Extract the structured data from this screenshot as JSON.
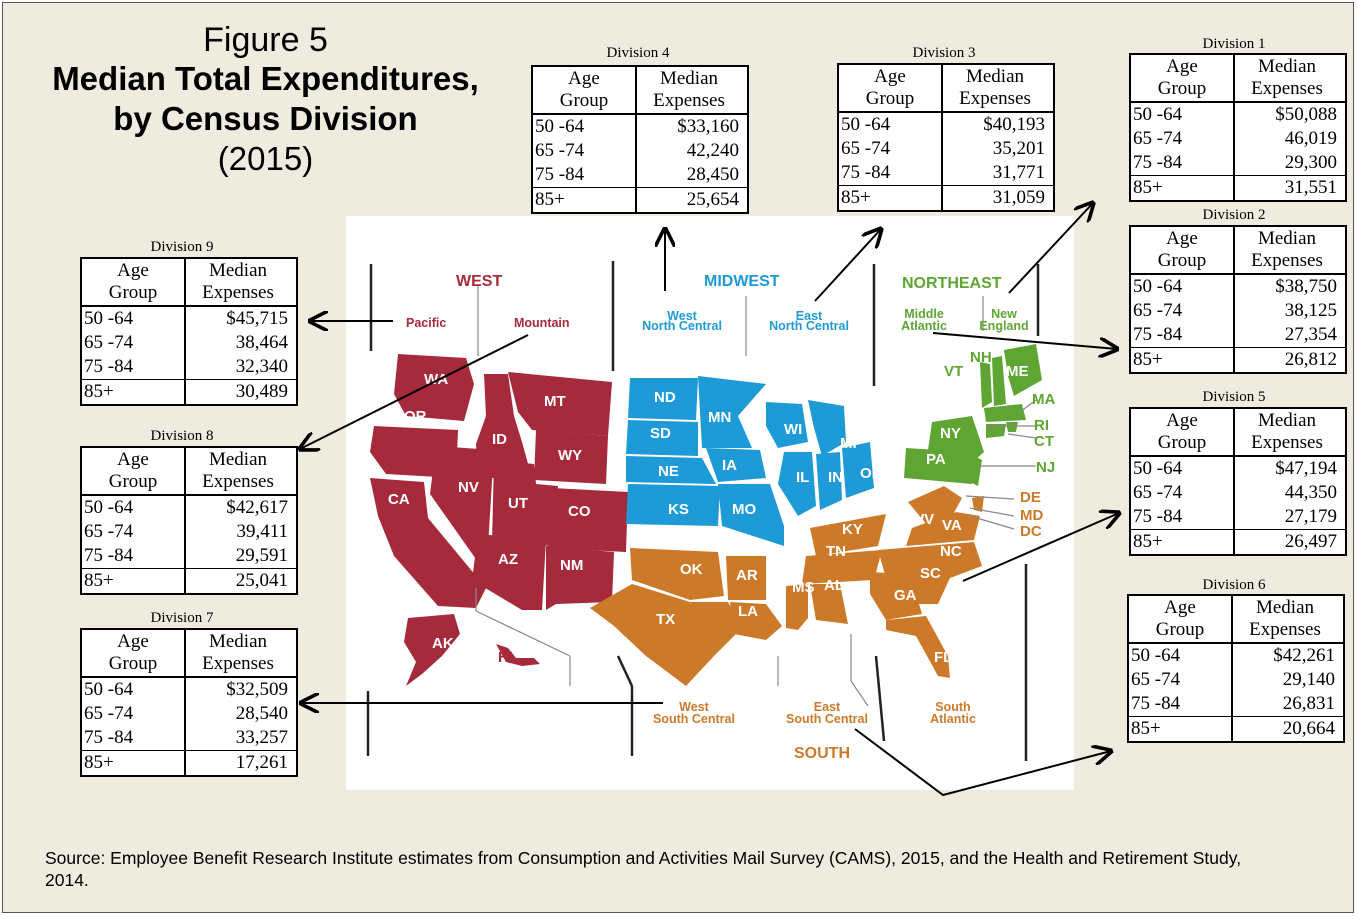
{
  "title": {
    "figure": "Figure 5",
    "line1": "Median Total Expenditures,",
    "line2": "by Census Division",
    "year": "(2015)"
  },
  "table_header": {
    "col1_l1": "Age",
    "col1_l2": "Group",
    "col2_l1": "Median",
    "col2_l2": "Expenses"
  },
  "age_groups": [
    "50 -64",
    "65 -74",
    "75 -84",
    "85+"
  ],
  "divisions": [
    {
      "label": "Division 1",
      "values": [
        "$50,088",
        "46,019",
        "29,300",
        "31,551"
      ]
    },
    {
      "label": "Division 2",
      "values": [
        "$38,750",
        "38,125",
        "27,354",
        "26,812"
      ]
    },
    {
      "label": "Division 3",
      "values": [
        "$40,193",
        "35,201",
        "31,771",
        "31,059"
      ]
    },
    {
      "label": "Division 4",
      "values": [
        "$33,160",
        "42,240",
        "28,450",
        "25,654"
      ]
    },
    {
      "label": "Division 5",
      "values": [
        "$47,194",
        "44,350",
        "27,179",
        "26,497"
      ]
    },
    {
      "label": "Division 6",
      "values": [
        "$42,261",
        "29,140",
        "26,831",
        "20,664"
      ]
    },
    {
      "label": "Division 7",
      "values": [
        "$32,509",
        "28,540",
        "33,257",
        "17,261"
      ]
    },
    {
      "label": "Division 8",
      "values": [
        "$42,617",
        "39,411",
        "29,591",
        "25,041"
      ]
    },
    {
      "label": "Division 9",
      "values": [
        "$45,715",
        "38,464",
        "32,340",
        "30,489"
      ]
    }
  ],
  "map": {
    "regions": {
      "west": "WEST",
      "midwest": "MIDWEST",
      "northeast": "NORTHEAST",
      "south": "SOUTH"
    },
    "subregions": {
      "pacific": "Pacific",
      "mountain": "Mountain",
      "wnc_1": "West",
      "wnc_2": "North Central",
      "enc_1": "East",
      "enc_2": "North Central",
      "ma_1": "Middle",
      "ma_2": "Atlantic",
      "ne_1": "New",
      "ne_2": "England",
      "wsc_1": "West",
      "wsc_2": "South Central",
      "esc_1": "East",
      "esc_2": "South Central",
      "sa_1": "South",
      "sa_2": "Atlantic"
    },
    "states": {
      "WA": "WA",
      "OR": "OR",
      "CA": "CA",
      "ID": "ID",
      "NV": "NV",
      "MT": "MT",
      "WY": "WY",
      "UT": "UT",
      "CO": "CO",
      "AZ": "AZ",
      "NM": "NM",
      "AK": "AK",
      "HI": "HI",
      "ND": "ND",
      "SD": "SD",
      "NE": "NE",
      "KS": "KS",
      "MN": "MN",
      "IA": "IA",
      "MO": "MO",
      "WI": "WI",
      "MI": "MI",
      "IL": "IL",
      "IN": "IN",
      "OH": "OH",
      "NY": "NY",
      "PA": "PA",
      "NJ": "NJ",
      "VT": "VT",
      "NH": "NH",
      "ME": "ME",
      "MA": "MA",
      "RI": "RI",
      "CT": "CT",
      "DE": "DE",
      "MD": "MD",
      "DC": "DC",
      "WV": "WV",
      "VA": "VA",
      "NC": "NC",
      "SC": "SC",
      "GA": "GA",
      "FL": "FL",
      "KY": "KY",
      "TN": "TN",
      "MS": "MS",
      "AL": "AL",
      "OK": "OK",
      "TX": "TX",
      "AR": "AR",
      "LA": "LA"
    },
    "colors": {
      "west": "#a52a3c",
      "midwest": "#1e9ad6",
      "northeast": "#5ea533",
      "south": "#cc7a2a"
    }
  },
  "source": "Source: Employee Benefit Research Institute estimates from Consumption and Activities Mail Survey (CAMS), 2015, and the Health and Retirement Study, 2014."
}
